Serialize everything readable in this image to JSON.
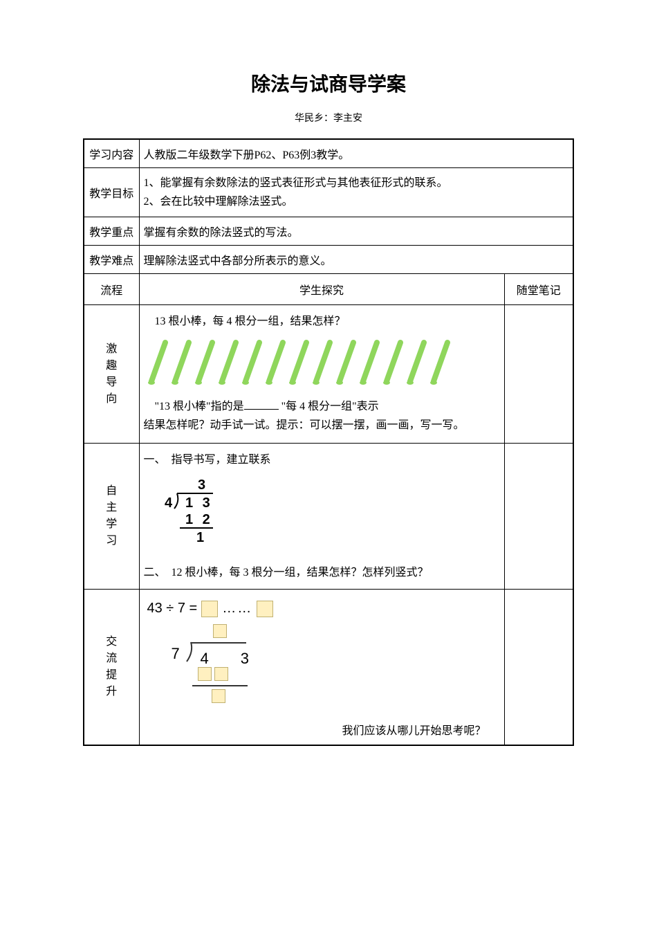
{
  "title": "除法与试商导学案",
  "author": "华民乡：李主安",
  "rows": {
    "content_label": "学习内容",
    "content_text": "人教版二年级数学下册P62、P63例3教学。",
    "goal_label": "教学目标",
    "goal_text_1": "1、能掌握有余数除法的竖式表征形式与其他表征形式的联系。",
    "goal_text_2": "2、会在比较中理解除法竖式。",
    "key_label": "教学重点",
    "key_text": "掌握有余数的除法竖式的写法。",
    "difficult_label": "教学难点",
    "difficult_text": "理解除法竖式中各部分所表示的意义。"
  },
  "header": {
    "process": "流程",
    "explore": "学生探究",
    "notes": "随堂笔记"
  },
  "section1": {
    "label_chars": [
      "激",
      "趣",
      "导",
      "向"
    ],
    "q1": "13 根小棒，每 4 根分一组，结果怎样？",
    "sticks_count": 13,
    "stick_color": "#8fd65c",
    "blank_prefix": "\"13 根小棒\"指的是",
    "blank_suffix": "\"每 4 根分一组\"表示",
    "hint": "结果怎样呢？动手试一试。提示：可以摆一摆，画一画，写一写。"
  },
  "section2": {
    "label_chars": [
      "自",
      "主",
      "学",
      "习"
    ],
    "heading1": "一、　指导书写，建立联系",
    "division": {
      "divisor": "4",
      "dividend": "1 3",
      "quotient": "3",
      "product": "1 2",
      "remainder": "1"
    },
    "heading2": "二、　12 根小棒，每 3 根分一组，结果怎样？怎样列竖式？"
  },
  "section3": {
    "label_chars": [
      "交",
      "流",
      "提",
      "升"
    ],
    "equation_lhs": "43 ÷ 7 =",
    "dots": "……",
    "divisor": "7",
    "dividend": "4　3",
    "question": "我们应该从哪儿开始思考呢？"
  },
  "colors": {
    "text": "#000000",
    "border": "#000000",
    "box_fill": "#fff0c0",
    "box_border": "#c0b070"
  }
}
